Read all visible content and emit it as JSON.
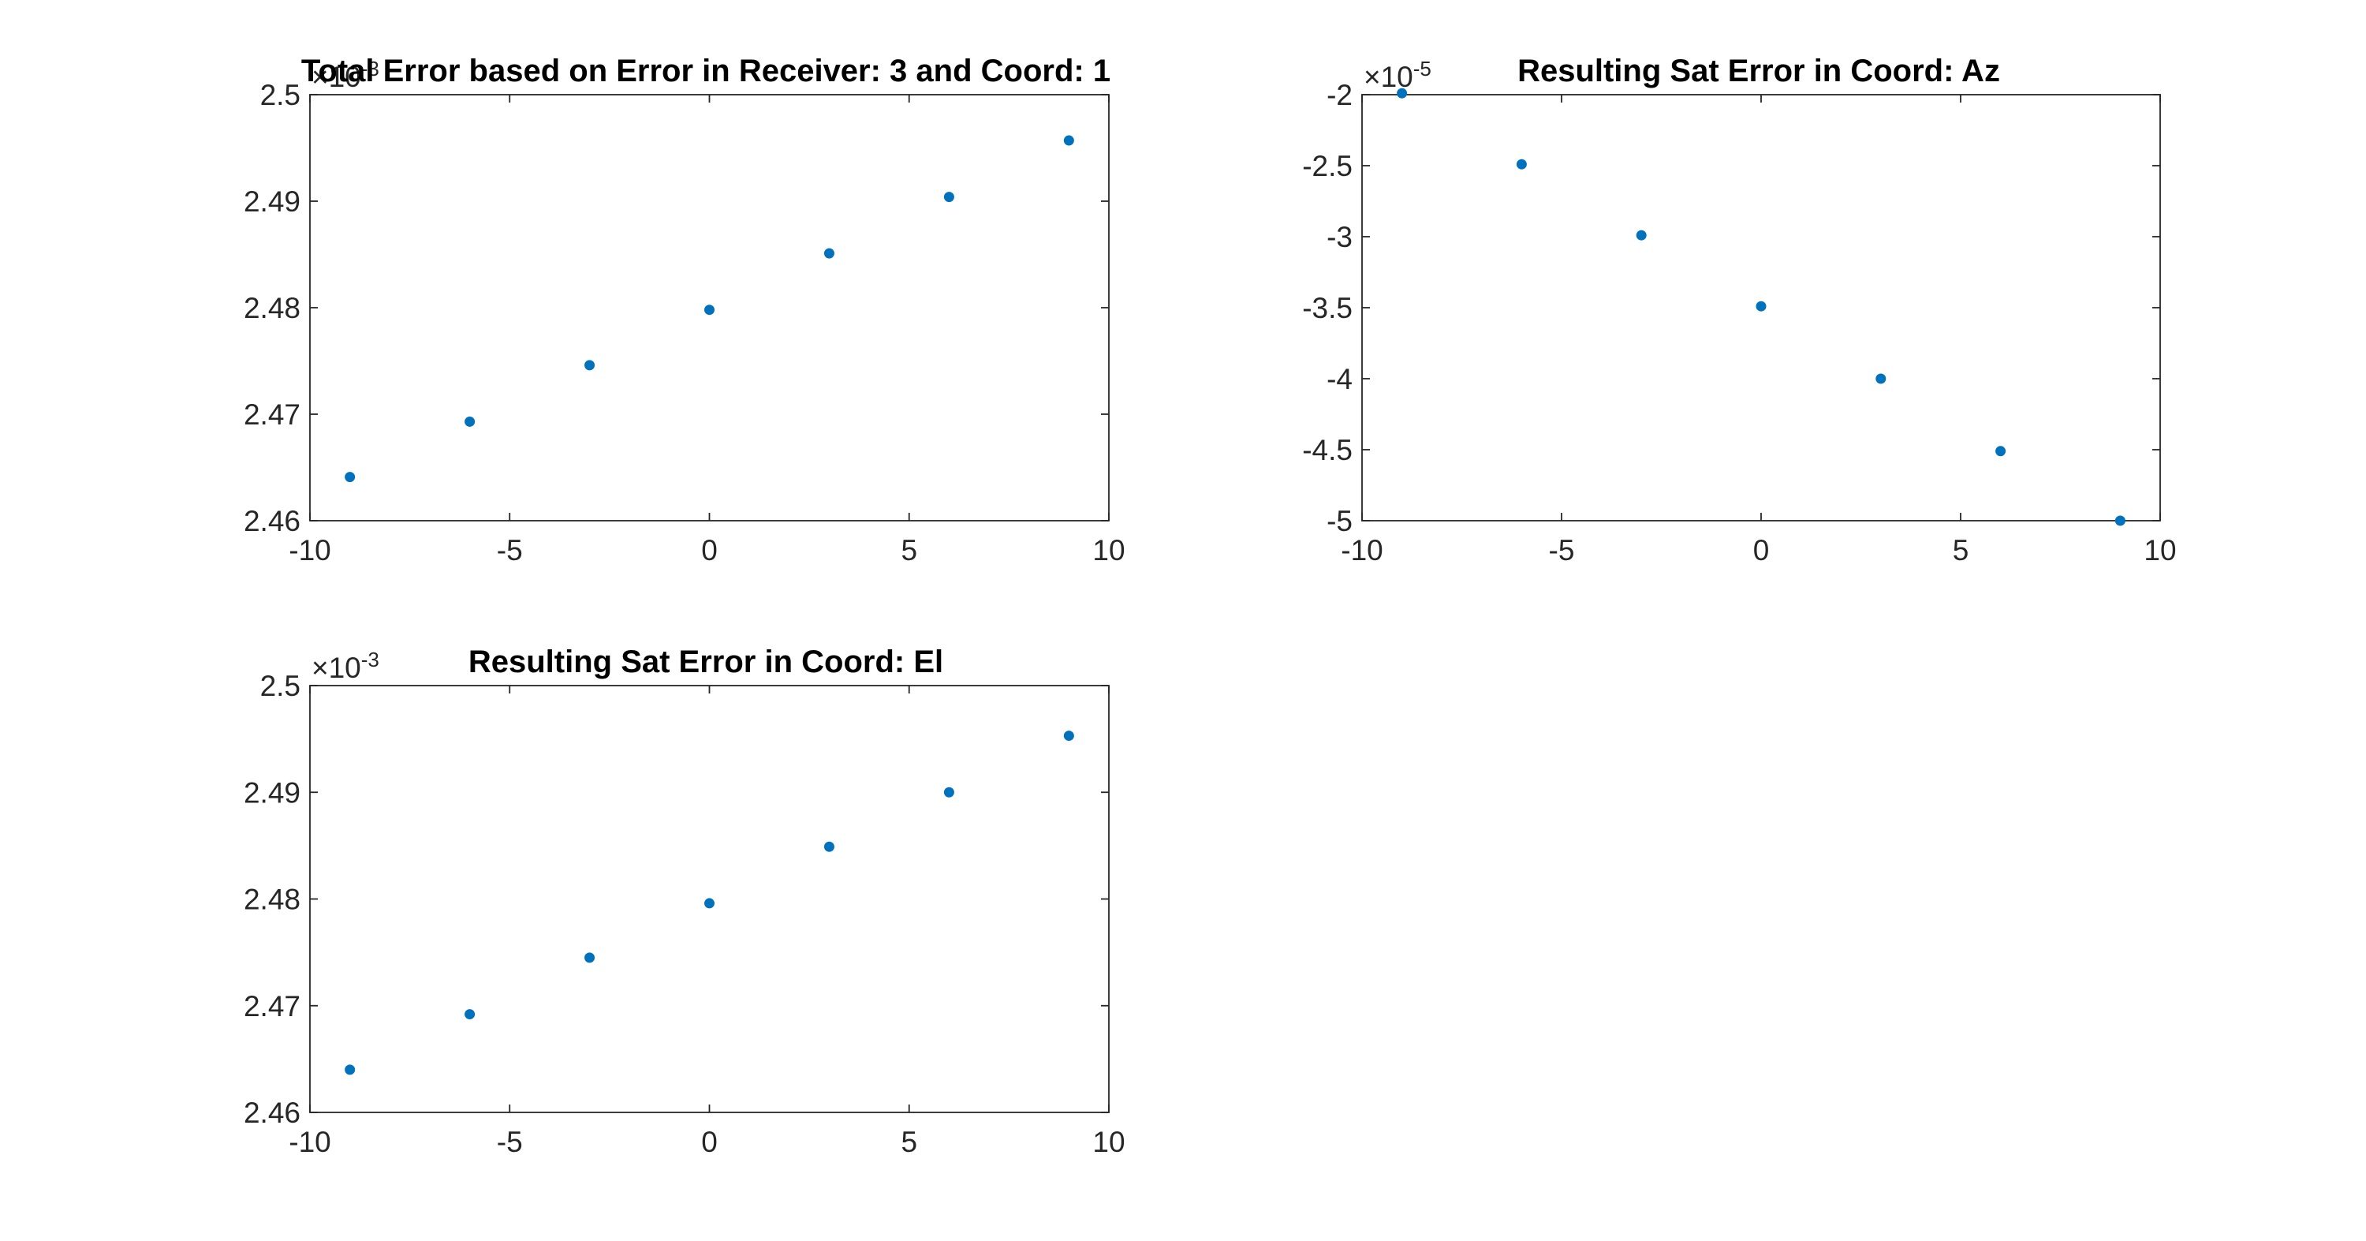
{
  "chart_data": [
    {
      "type": "scatter",
      "title": "Total Error based on Error in Receiver: 3 and Coord: 1",
      "xlabel": "",
      "ylabel": "",
      "xlim": [
        -10,
        10
      ],
      "ylim": [
        2.46,
        2.5
      ],
      "x_ticks": [
        -10,
        -5,
        0,
        5,
        10
      ],
      "y_ticks": [
        2.46,
        2.47,
        2.48,
        2.49,
        2.5
      ],
      "x_tick_labels": [
        "-10",
        "-5",
        "0",
        "5",
        "10"
      ],
      "y_tick_labels": [
        "2.46",
        "2.47",
        "2.48",
        "2.49",
        "2.5"
      ],
      "y_exponent_base": "×10",
      "y_exponent": "-3",
      "grid": false,
      "color": "#0072BD",
      "series": [
        {
          "x": [
            -9,
            -6,
            -3,
            0,
            3,
            6,
            9
          ],
          "y": [
            2.4641,
            2.4693,
            2.4746,
            2.4798,
            2.4851,
            2.4904,
            2.4957
          ]
        }
      ]
    },
    {
      "type": "scatter",
      "title": "Resulting Sat Error in Coord: Az",
      "xlabel": "",
      "ylabel": "",
      "xlim": [
        -10,
        10
      ],
      "ylim": [
        -5,
        -2
      ],
      "x_ticks": [
        -10,
        -5,
        0,
        5,
        10
      ],
      "y_ticks": [
        -5,
        -4.5,
        -4,
        -3.5,
        -3,
        -2.5,
        -2
      ],
      "x_tick_labels": [
        "-10",
        "-5",
        "0",
        "5",
        "10"
      ],
      "y_tick_labels": [
        "-5",
        "-4.5",
        "-4",
        "-3.5",
        "-3",
        "-2.5",
        "-2"
      ],
      "y_exponent_base": "×10",
      "y_exponent": "-5",
      "grid": false,
      "color": "#0072BD",
      "series": [
        {
          "x": [
            -9,
            -6,
            -3,
            0,
            3,
            6,
            9
          ],
          "y": [
            -1.99,
            -2.49,
            -2.99,
            -3.49,
            -4.0,
            -4.51,
            -5.0
          ]
        }
      ]
    },
    {
      "type": "scatter",
      "title": "Resulting Sat Error in Coord: El",
      "xlabel": "",
      "ylabel": "",
      "xlim": [
        -10,
        10
      ],
      "ylim": [
        2.46,
        2.5
      ],
      "x_ticks": [
        -10,
        -5,
        0,
        5,
        10
      ],
      "y_ticks": [
        2.46,
        2.47,
        2.48,
        2.49,
        2.5
      ],
      "x_tick_labels": [
        "-10",
        "-5",
        "0",
        "5",
        "10"
      ],
      "y_tick_labels": [
        "2.46",
        "2.47",
        "2.48",
        "2.49",
        "2.5"
      ],
      "y_exponent_base": "×10",
      "y_exponent": "-3",
      "grid": false,
      "color": "#0072BD",
      "series": [
        {
          "x": [
            -9,
            -6,
            -3,
            0,
            3,
            6,
            9
          ],
          "y": [
            2.464,
            2.4692,
            2.4745,
            2.4796,
            2.4849,
            2.49,
            2.4953
          ]
        }
      ]
    }
  ]
}
